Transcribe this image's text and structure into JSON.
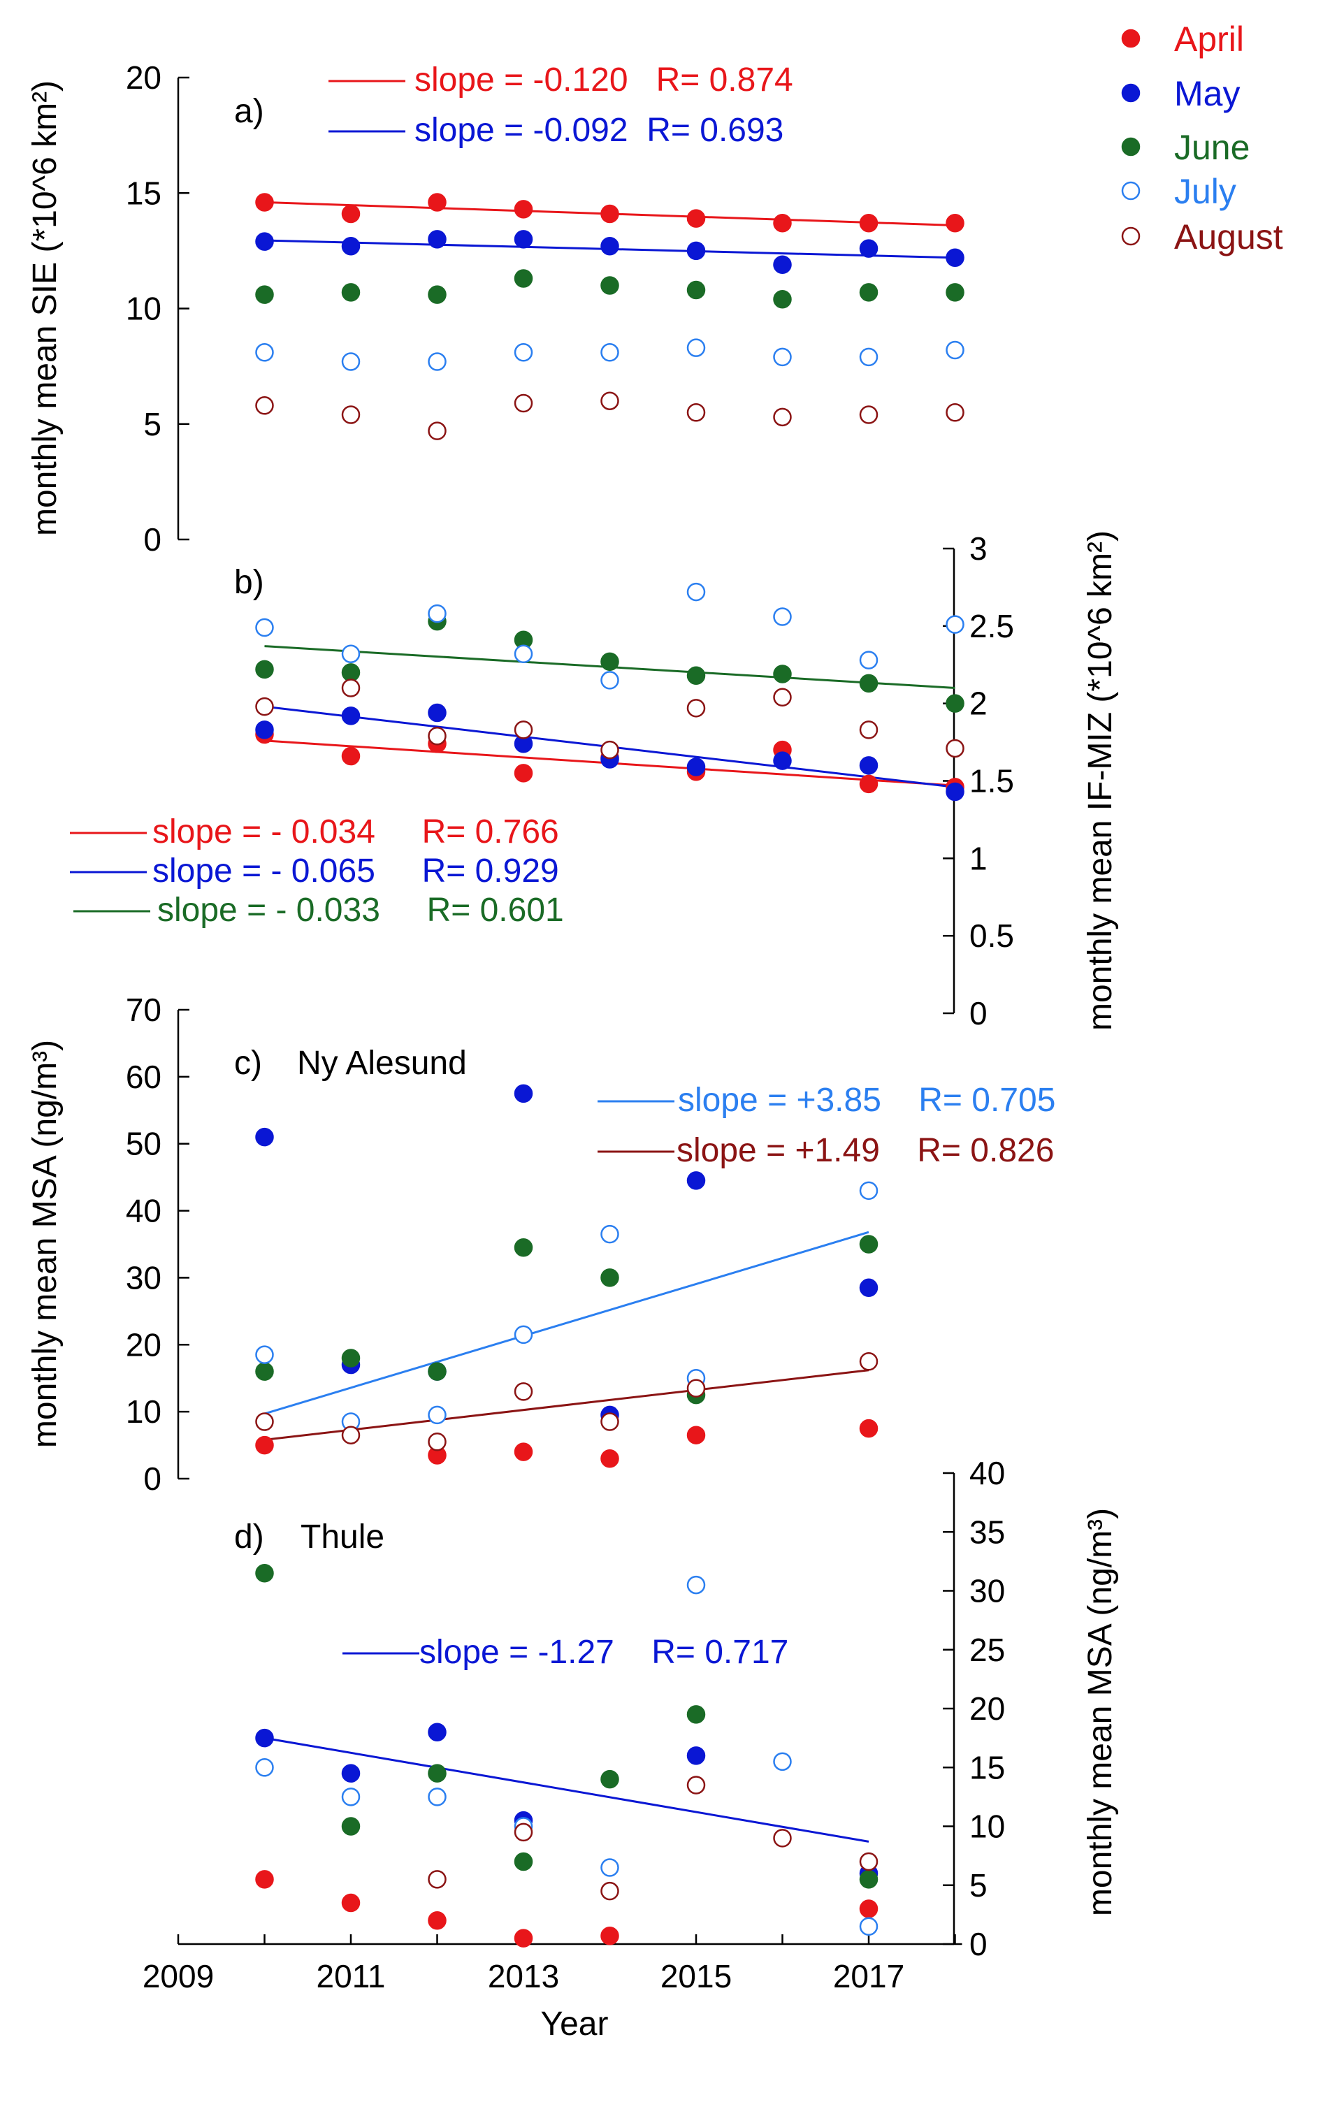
{
  "colors": {
    "April": "#e8161a",
    "May": "#0a17d4",
    "June": "#1a6b26",
    "July": "#2b7ff0",
    "August": "#8b1414"
  },
  "legend": [
    {
      "name": "April",
      "fill": true
    },
    {
      "name": "May",
      "fill": true
    },
    {
      "name": "June",
      "fill": true
    },
    {
      "name": "July",
      "fill": false
    },
    {
      "name": "August",
      "fill": false
    }
  ],
  "x_axis": {
    "label": "Year",
    "range": [
      2009,
      2018
    ],
    "ticks": [
      "2009",
      "2011",
      "2013",
      "2015",
      "2017"
    ]
  },
  "chart_data": [
    {
      "id": "a",
      "type": "scatter",
      "panel_label": "a)",
      "title": "",
      "ylabel": "monthly mean SIE (*10^6 km²)",
      "yaxis_side": "left",
      "ylim": [
        0,
        20
      ],
      "yticks": [
        "0",
        "5",
        "10",
        "15",
        "20"
      ],
      "x": [
        2010,
        2011,
        2012,
        2013,
        2014,
        2015,
        2016,
        2017,
        2018
      ],
      "series": [
        {
          "name": "April",
          "values": [
            14.6,
            14.1,
            14.6,
            14.3,
            14.1,
            13.9,
            13.7,
            13.7,
            13.7
          ]
        },
        {
          "name": "May",
          "values": [
            12.9,
            12.7,
            13.0,
            13.0,
            12.7,
            12.5,
            11.9,
            12.6,
            12.2
          ]
        },
        {
          "name": "June",
          "values": [
            10.6,
            10.7,
            10.6,
            11.3,
            11.0,
            10.8,
            10.4,
            10.7,
            10.7
          ]
        },
        {
          "name": "July",
          "values": [
            8.1,
            7.7,
            7.7,
            8.1,
            8.1,
            8.3,
            7.9,
            7.9,
            8.2
          ]
        },
        {
          "name": "August",
          "values": [
            5.8,
            5.4,
            4.7,
            5.9,
            6.0,
            5.5,
            5.3,
            5.4,
            5.5
          ]
        }
      ],
      "fits": [
        {
          "series": "April",
          "x": [
            2010,
            2018
          ],
          "y": [
            14.6,
            13.6
          ],
          "label": "slope = -0.120   R= 0.874"
        },
        {
          "series": "May",
          "x": [
            2010,
            2018
          ],
          "y": [
            12.95,
            12.2
          ],
          "label": "slope = -0.092  R= 0.693"
        }
      ]
    },
    {
      "id": "b",
      "type": "scatter",
      "panel_label": "b)",
      "title": "",
      "ylabel": "monthly mean IF-MIZ (*10^6 km²)",
      "yaxis_side": "right",
      "ylim": [
        0,
        3
      ],
      "yticks": [
        "0",
        "0.5",
        "1",
        "1.5",
        "2",
        "2.5",
        "3"
      ],
      "x": [
        2010,
        2011,
        2012,
        2013,
        2014,
        2015,
        2016,
        2017,
        2018
      ],
      "series": [
        {
          "name": "April",
          "values": [
            1.8,
            1.66,
            1.74,
            1.55,
            1.65,
            1.56,
            1.7,
            1.48,
            1.46
          ]
        },
        {
          "name": "May",
          "values": [
            1.83,
            1.92,
            1.94,
            1.74,
            1.64,
            1.59,
            1.63,
            1.6,
            1.43
          ]
        },
        {
          "name": "June",
          "values": [
            2.22,
            2.2,
            2.53,
            2.41,
            2.27,
            2.18,
            2.19,
            2.13,
            2.0
          ]
        },
        {
          "name": "July",
          "values": [
            2.49,
            2.32,
            2.58,
            2.32,
            2.15,
            2.72,
            2.56,
            2.28,
            2.51
          ]
        },
        {
          "name": "August",
          "values": [
            1.98,
            2.1,
            1.79,
            1.83,
            1.7,
            1.97,
            2.04,
            1.83,
            1.71
          ]
        }
      ],
      "fits": [
        {
          "series": "April",
          "x": [
            2010,
            2018
          ],
          "y": [
            1.76,
            1.47
          ],
          "label": "slope = - 0.034     R= 0.766"
        },
        {
          "series": "May",
          "x": [
            2010,
            2018
          ],
          "y": [
            1.98,
            1.46
          ],
          "label": "slope = - 0.065     R= 0.929"
        },
        {
          "series": "June",
          "x": [
            2010,
            2018
          ],
          "y": [
            2.37,
            2.1
          ],
          "label": "slope = - 0.033     R= 0.601"
        }
      ]
    },
    {
      "id": "c",
      "type": "scatter",
      "panel_label": "c)",
      "title": "Ny Alesund",
      "ylabel": "monthly mean MSA (ng/m³)",
      "yaxis_side": "left",
      "ylim": [
        0,
        70
      ],
      "yticks": [
        "0",
        "10",
        "20",
        "30",
        "40",
        "50",
        "60",
        "70"
      ],
      "x": [
        2010,
        2011,
        2012,
        2013,
        2014,
        2015,
        2016,
        2017
      ],
      "series": [
        {
          "name": "April",
          "values": [
            5.0,
            null,
            3.5,
            4.0,
            3.0,
            6.5,
            null,
            7.5
          ]
        },
        {
          "name": "May",
          "values": [
            51.0,
            17.0,
            16.0,
            57.5,
            9.5,
            44.5,
            null,
            28.5
          ]
        },
        {
          "name": "June",
          "values": [
            16.0,
            18.0,
            16.0,
            34.5,
            30.0,
            12.5,
            null,
            35.0
          ]
        },
        {
          "name": "July",
          "values": [
            18.5,
            8.5,
            9.5,
            21.5,
            36.5,
            15.0,
            null,
            43.0
          ]
        },
        {
          "name": "August",
          "values": [
            8.5,
            6.5,
            5.5,
            13.0,
            8.5,
            13.5,
            null,
            17.5
          ]
        }
      ],
      "fits": [
        {
          "series": "July",
          "x": [
            2010,
            2017
          ],
          "y": [
            9.7,
            36.8
          ],
          "label": "slope = +3.85    R= 0.705"
        },
        {
          "series": "August",
          "x": [
            2010,
            2017
          ],
          "y": [
            5.8,
            16.2
          ],
          "label": "slope = +1.49    R= 0.826"
        }
      ]
    },
    {
      "id": "d",
      "type": "scatter",
      "panel_label": "d)",
      "title": "Thule",
      "ylabel": "monthly mean MSA (ng/m³)",
      "yaxis_side": "right",
      "ylim": [
        0,
        40
      ],
      "yticks": [
        "0",
        "5",
        "10",
        "15",
        "20",
        "25",
        "30",
        "35",
        "40"
      ],
      "x": [
        2010,
        2011,
        2012,
        2013,
        2014,
        2015,
        2016,
        2017
      ],
      "series": [
        {
          "name": "April",
          "values": [
            5.5,
            3.5,
            2.0,
            0.5,
            0.7,
            null,
            null,
            3.0
          ]
        },
        {
          "name": "May",
          "values": [
            17.5,
            14.5,
            18.0,
            10.5,
            null,
            16.0,
            null,
            6.0
          ]
        },
        {
          "name": "June",
          "values": [
            31.5,
            10.0,
            14.5,
            7.0,
            14.0,
            19.5,
            null,
            5.5
          ]
        },
        {
          "name": "July",
          "values": [
            15.0,
            12.5,
            12.5,
            10.0,
            6.5,
            30.5,
            15.5,
            1.5
          ]
        },
        {
          "name": "August",
          "values": [
            null,
            null,
            5.5,
            9.5,
            4.5,
            13.5,
            9.0,
            7.0
          ]
        }
      ],
      "fits": [
        {
          "series": "May",
          "x": [
            2010,
            2017
          ],
          "y": [
            17.5,
            8.7
          ],
          "label": "slope = -1.27    R= 0.717"
        }
      ]
    }
  ]
}
